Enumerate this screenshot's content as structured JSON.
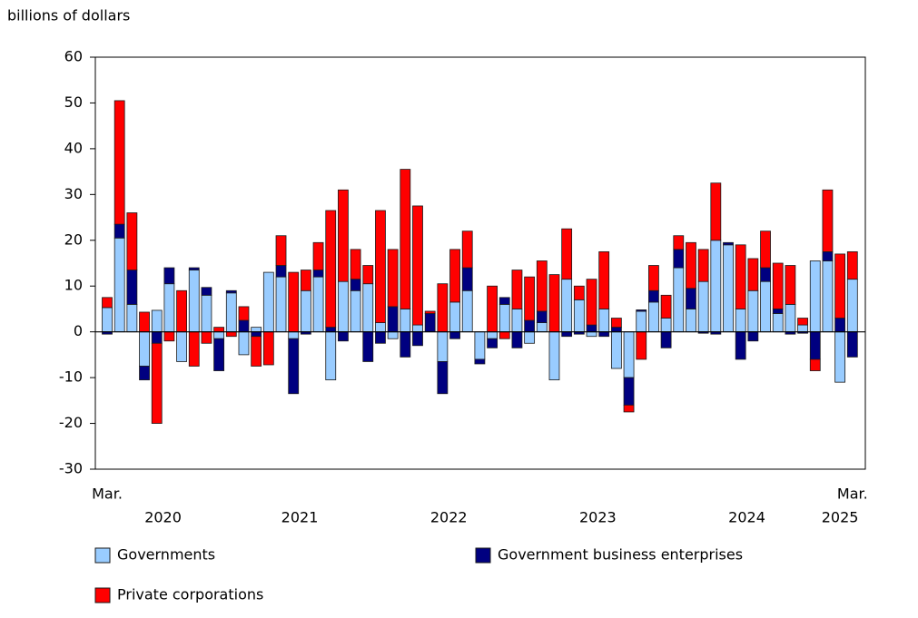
{
  "chart_data": {
    "type": "stacked_bar",
    "y_axis_label": "billions of dollars",
    "categories": [
      "Mar.",
      null,
      null,
      null,
      null,
      null,
      null,
      null,
      null,
      null,
      null,
      null,
      null,
      null,
      null,
      null,
      null,
      null,
      null,
      null,
      null,
      null,
      null,
      null,
      null,
      null,
      null,
      null,
      null,
      null,
      null,
      null,
      null,
      null,
      null,
      null,
      null,
      null,
      null,
      null,
      null,
      null,
      null,
      null,
      null,
      null,
      null,
      null,
      null,
      null,
      null,
      null,
      null,
      null,
      null,
      null,
      null,
      null,
      null,
      null,
      "Mar."
    ],
    "year_labels": [
      "2020",
      "2021",
      "2022",
      "2023",
      "2024",
      "2025"
    ],
    "ylim": [
      -30,
      60
    ],
    "yticks": [
      -30,
      -20,
      -10,
      0,
      10,
      20,
      30,
      40,
      50,
      60
    ],
    "series": [
      {
        "name": "Governments",
        "color": "#99ccff",
        "values": [
          5.3,
          20.5,
          6,
          -7.5,
          4.7,
          10.5,
          -6.5,
          13.5,
          8,
          -1.5,
          8.5,
          -5,
          1,
          13,
          12,
          -1.5,
          9,
          12,
          -10.5,
          11,
          9,
          10.5,
          2,
          -1.5,
          5,
          1.5,
          0,
          -6.5,
          6.5,
          9,
          -6,
          -1.5,
          6,
          5,
          -2.5,
          2,
          -10.5,
          11.5,
          7,
          -1,
          5,
          -8,
          -10,
          4.5,
          6.5,
          3,
          14,
          5,
          11,
          20,
          19,
          5,
          9,
          11,
          4,
          6,
          1.5,
          15.5,
          15.5,
          -11,
          11.5
        ]
      },
      {
        "name": "Government business enterprises",
        "color": "#000080",
        "values": [
          -0.5,
          3,
          7.5,
          -3,
          -2.5,
          3.5,
          0,
          0.5,
          1.7,
          -7,
          0.5,
          2.5,
          -1,
          0,
          2.5,
          -12,
          -0.5,
          1.5,
          1,
          -2,
          2.5,
          -6.5,
          -2.5,
          5.5,
          -5.5,
          -3,
          4,
          -7,
          -1.5,
          5,
          -1,
          -2,
          1.5,
          -3.5,
          2.5,
          2.5,
          0,
          -1,
          -0.5,
          1.5,
          -1,
          1,
          -6,
          0.3,
          2.5,
          -3.5,
          4,
          4.5,
          -0.3,
          -0.5,
          0.5,
          -6,
          -2,
          3,
          1,
          -0.5,
          -0.3,
          -6,
          2,
          3,
          -5.5
        ]
      },
      {
        "name": "Private corporations",
        "color": "#ff0000",
        "values": [
          2.2,
          27,
          12.5,
          4.3,
          -17.5,
          -2,
          9,
          -7.5,
          -2.5,
          1,
          -1,
          3,
          -6.5,
          -7.2,
          6.5,
          13,
          4.5,
          6,
          25.5,
          20,
          6.5,
          4,
          24.5,
          12.5,
          30.5,
          26,
          0.5,
          10.5,
          11.5,
          8,
          0,
          10,
          -1.5,
          8.5,
          9.5,
          11,
          12.5,
          11,
          3,
          10,
          12.5,
          2,
          -1.5,
          -6,
          5.5,
          5,
          3,
          10,
          7,
          12.5,
          0,
          14,
          7,
          8,
          10,
          8.5,
          1.5,
          -2.5,
          13.5,
          14,
          6
        ]
      }
    ]
  }
}
